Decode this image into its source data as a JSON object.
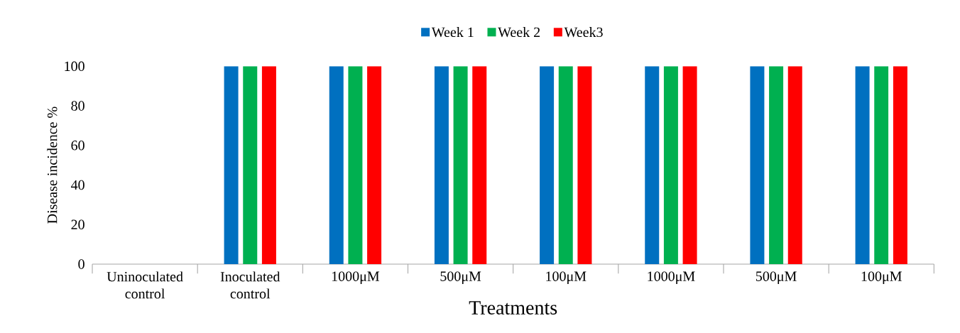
{
  "chart_data": {
    "type": "bar",
    "categories": [
      "Uninoculated control",
      "Inoculated control",
      "1000μM",
      "500μM",
      "100μM",
      "1000μM",
      "500μM",
      "100μM"
    ],
    "series": [
      {
        "name": "Week 1",
        "color": "#0070c0",
        "values": [
          0,
          100,
          100,
          100,
          100,
          100,
          100,
          100
        ]
      },
      {
        "name": "Week 2",
        "color": "#00b050",
        "values": [
          0,
          100,
          100,
          100,
          100,
          100,
          100,
          100
        ]
      },
      {
        "name": "Week3",
        "color": "#ff0000",
        "values": [
          0,
          100,
          100,
          100,
          100,
          100,
          100,
          100
        ]
      }
    ],
    "xlabel": "Treatments",
    "ylabel": "Disease incidence %",
    "ylim": [
      0,
      100
    ],
    "yticks": [
      0,
      20,
      40,
      60,
      80,
      100
    ],
    "legend": "top",
    "grid": false
  }
}
